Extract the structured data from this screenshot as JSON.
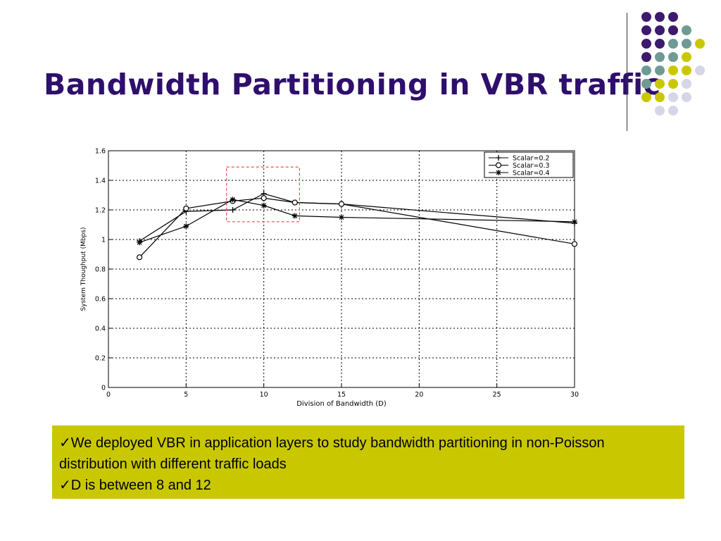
{
  "slide": {
    "title": "Bandwidth Partitioning in VBR traffic",
    "bullets": [
      "We deployed VBR in application layers to study bandwidth partitioning in non-Poisson distribution with different traffic loads",
      "D is between 8 and 12"
    ],
    "check_glyph": "✓",
    "colors": {
      "title": "#2e0f6b",
      "bullet_box": "#c9c800",
      "dot_purple": "#3d1a6e",
      "dot_teal": "#6f9a96",
      "dot_yellow": "#c9c800",
      "dot_lavender": "#d6d6e8",
      "highlight_box": "#e8504a"
    },
    "decor": {
      "dot_rows": [
        [
          "purple",
          "purple",
          "purple"
        ],
        [
          "purple",
          "purple",
          "purple",
          "teal"
        ],
        [
          "purple",
          "purple",
          "teal",
          "teal",
          "yellow"
        ],
        [
          "purple",
          "teal",
          "teal",
          "yellow"
        ],
        [
          "teal",
          "teal",
          "yellow",
          "yellow",
          "lavender"
        ],
        [
          "teal",
          "yellow",
          "yellow",
          "lavender"
        ],
        [
          "yellow",
          "yellow",
          "lavender",
          "lavender"
        ],
        [
          "lavender",
          "lavender"
        ]
      ]
    }
  },
  "chart_data": {
    "type": "line",
    "xlabel": "Division of Bandwidth (D)",
    "ylabel": "System Thoughput (Mbps)",
    "xlim": [
      0,
      30
    ],
    "ylim": [
      0,
      1.6
    ],
    "xticks": [
      0,
      5,
      10,
      15,
      20,
      25,
      30
    ],
    "yticks": [
      0,
      0.2,
      0.4,
      0.6,
      0.8,
      1,
      1.2,
      1.4,
      1.6
    ],
    "grid": true,
    "legend": "top-right",
    "series": [
      {
        "name": "Scalar=0.2",
        "marker": "plus",
        "x": [
          2,
          5,
          8,
          10,
          12,
          15,
          30
        ],
        "y": [
          0.99,
          1.19,
          1.2,
          1.31,
          1.25,
          1.24,
          1.11
        ]
      },
      {
        "name": "Scalar=0.3",
        "marker": "circle",
        "x": [
          2,
          5,
          8,
          10,
          12,
          15,
          30
        ],
        "y": [
          0.88,
          1.21,
          1.26,
          1.28,
          1.25,
          1.24,
          0.97
        ]
      },
      {
        "name": "Scalar=0.4",
        "marker": "star",
        "x": [
          2,
          5,
          8,
          10,
          12,
          15,
          30
        ],
        "y": [
          0.98,
          1.09,
          1.27,
          1.23,
          1.16,
          1.15,
          1.12
        ]
      }
    ],
    "highlight": {
      "x": [
        7.6,
        12.3
      ],
      "y": [
        1.12,
        1.49
      ]
    }
  }
}
